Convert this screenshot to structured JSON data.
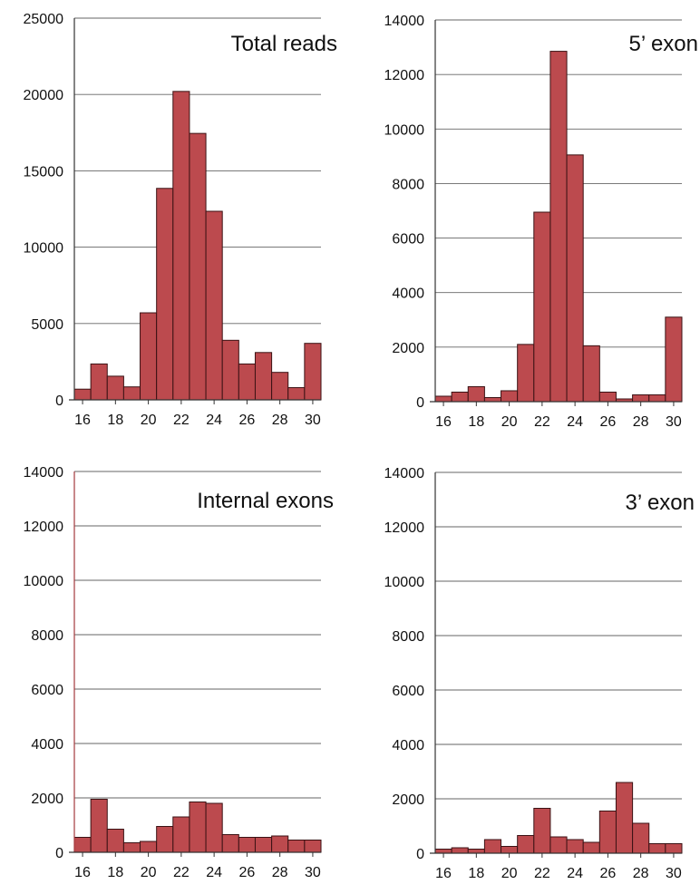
{
  "colors": {
    "bar_fill": "#bc4a4e",
    "bar_stroke": "#3b1214",
    "axis": "#333333",
    "grid": "#666666",
    "internal_axis": "#a33a3d"
  },
  "chart_data": [
    {
      "type": "bar",
      "title": "Total reads",
      "categories": [
        16,
        17,
        18,
        19,
        20,
        21,
        22,
        23,
        24,
        25,
        26,
        27,
        28,
        29,
        30
      ],
      "values": [
        700,
        2350,
        1550,
        850,
        5700,
        13850,
        20200,
        17450,
        12350,
        3900,
        2350,
        3100,
        1800,
        800,
        3700
      ],
      "ylim": [
        0,
        25000
      ],
      "yticks": [
        0,
        5000,
        10000,
        15000,
        20000,
        25000
      ],
      "xticks": [
        16,
        18,
        20,
        22,
        24,
        26,
        28,
        30
      ],
      "grid": true
    },
    {
      "type": "bar",
      "title": "5’ exon",
      "categories": [
        16,
        17,
        18,
        19,
        20,
        21,
        22,
        23,
        24,
        25,
        26,
        27,
        28,
        29,
        30
      ],
      "values": [
        200,
        350,
        550,
        150,
        400,
        2100,
        6950,
        12850,
        9050,
        2050,
        350,
        100,
        250,
        250,
        3100
      ],
      "ylim": [
        0,
        14000
      ],
      "yticks": [
        0,
        2000,
        4000,
        6000,
        8000,
        10000,
        12000,
        14000
      ],
      "xticks": [
        16,
        18,
        20,
        22,
        24,
        26,
        28,
        30
      ],
      "grid": true
    },
    {
      "type": "bar",
      "title": "Internal exons",
      "categories": [
        16,
        17,
        18,
        19,
        20,
        21,
        22,
        23,
        24,
        25,
        26,
        27,
        28,
        29,
        30
      ],
      "values": [
        550,
        1950,
        850,
        350,
        400,
        950,
        1300,
        1850,
        1800,
        650,
        550,
        550,
        600,
        450,
        450
      ],
      "ylim": [
        0,
        14000
      ],
      "yticks": [
        0,
        2000,
        4000,
        6000,
        8000,
        10000,
        12000,
        14000
      ],
      "xticks": [
        16,
        18,
        20,
        22,
        24,
        26,
        28,
        30
      ],
      "grid": true
    },
    {
      "type": "bar",
      "title": "3’ exon",
      "categories": [
        16,
        17,
        18,
        19,
        20,
        21,
        22,
        23,
        24,
        25,
        26,
        27,
        28,
        29,
        30
      ],
      "values": [
        150,
        200,
        150,
        500,
        250,
        650,
        1650,
        600,
        500,
        400,
        1550,
        2600,
        1100,
        350,
        350
      ],
      "ylim": [
        0,
        14000
      ],
      "yticks": [
        0,
        2000,
        4000,
        6000,
        8000,
        10000,
        12000,
        14000
      ],
      "xticks": [
        16,
        18,
        20,
        22,
        24,
        26,
        28,
        30
      ],
      "grid": true
    }
  ]
}
